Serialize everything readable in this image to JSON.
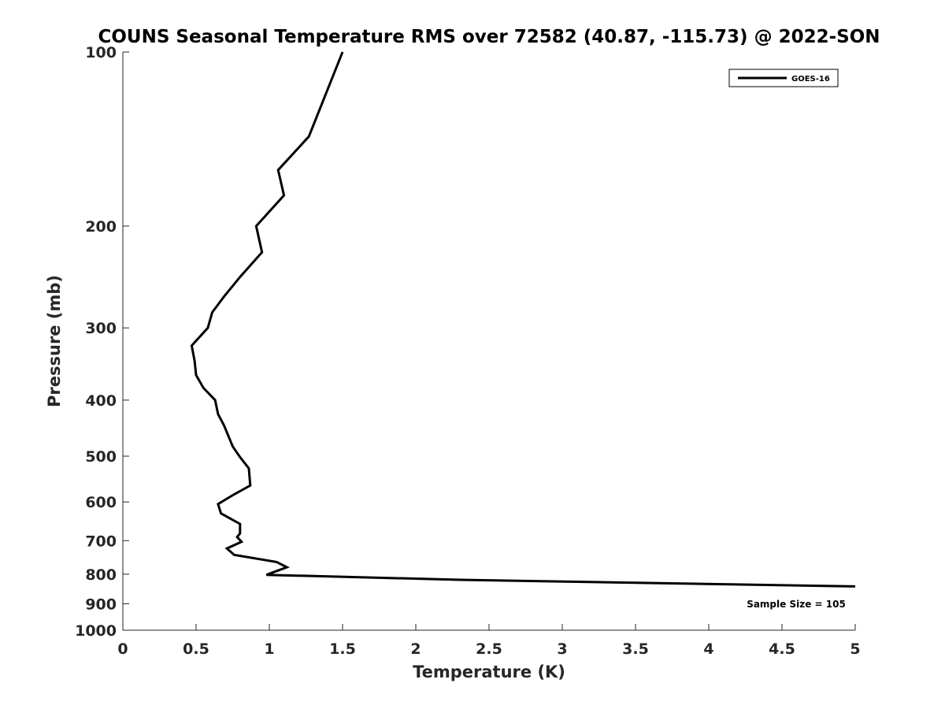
{
  "chart_data": {
    "type": "line",
    "title": "COUNS Seasonal Temperature RMS over 72582 (40.87, -115.73) @ 2022-SON",
    "xlabel": "Temperature (K)",
    "ylabel": "Pressure (mb)",
    "xlim": [
      0,
      5
    ],
    "ylim": [
      100,
      1000
    ],
    "y_scale": "log",
    "y_inverted": true,
    "x_ticks": [
      0,
      0.5,
      1,
      1.5,
      2,
      2.5,
      3,
      3.5,
      4,
      4.5,
      5
    ],
    "x_tick_labels": [
      "0",
      "0.5",
      "1",
      "1.5",
      "2",
      "2.5",
      "3",
      "3.5",
      "4",
      "4.5",
      "5"
    ],
    "y_ticks": [
      100,
      200,
      300,
      400,
      500,
      600,
      700,
      800,
      900,
      1000
    ],
    "y_tick_labels": [
      "100",
      "200",
      "300",
      "400",
      "500",
      "600",
      "700",
      "800",
      "900",
      "1000"
    ],
    "grid": false,
    "legend_position": "top-right",
    "annotation": "Sample Size = 105",
    "series": [
      {
        "name": "GOES-16",
        "color": "#000000",
        "points": [
          [
            1.5,
            100
          ],
          [
            1.27,
            140
          ],
          [
            1.06,
            160
          ],
          [
            1.1,
            177
          ],
          [
            0.91,
            200
          ],
          [
            0.95,
            222
          ],
          [
            0.8,
            245
          ],
          [
            0.69,
            265
          ],
          [
            0.61,
            282
          ],
          [
            0.58,
            300
          ],
          [
            0.47,
            322
          ],
          [
            0.49,
            342
          ],
          [
            0.5,
            362
          ],
          [
            0.55,
            381
          ],
          [
            0.63,
            400
          ],
          [
            0.65,
            423
          ],
          [
            0.69,
            442
          ],
          [
            0.75,
            481
          ],
          [
            0.8,
            502
          ],
          [
            0.86,
            525
          ],
          [
            0.87,
            562
          ],
          [
            0.76,
            582
          ],
          [
            0.65,
            605
          ],
          [
            0.67,
            628
          ],
          [
            0.8,
            655
          ],
          [
            0.8,
            680
          ],
          [
            0.78,
            690
          ],
          [
            0.81,
            703
          ],
          [
            0.71,
            722
          ],
          [
            0.76,
            741
          ],
          [
            1.05,
            762
          ],
          [
            1.12,
            778
          ],
          [
            0.98,
            802
          ],
          [
            2.3,
            818
          ],
          [
            5.0,
            840
          ]
        ]
      }
    ]
  }
}
